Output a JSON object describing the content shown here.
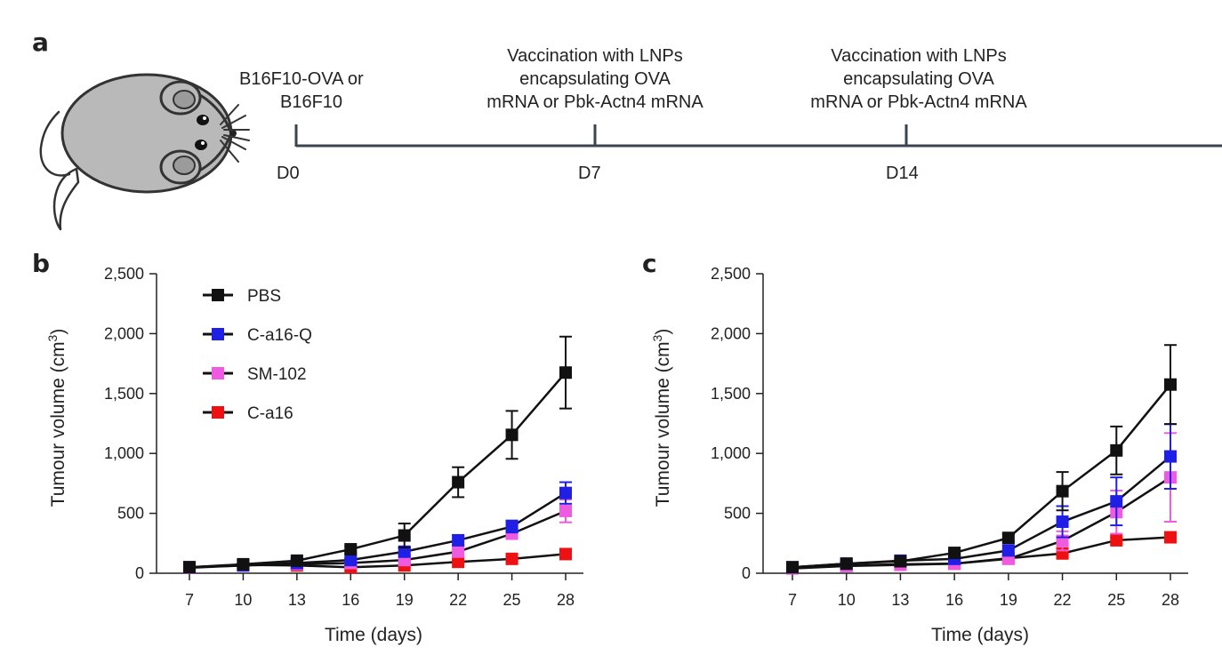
{
  "panels": {
    "a": "a",
    "b": "b",
    "c": "c"
  },
  "timeline": {
    "events": [
      {
        "day": "D0",
        "text": [
          "B16F10-OVA or",
          "B16F10"
        ]
      },
      {
        "day": "D7",
        "text": [
          "Vaccination with LNPs",
          "encapsulating OVA",
          "mRNA or Pbk-Actn4 mRNA"
        ]
      },
      {
        "day": "D14",
        "text": [
          "Vaccination with LNPs",
          "encapsulating OVA",
          "mRNA or Pbk-Actn4 mRNA"
        ]
      }
    ],
    "icon": "mouse-icon"
  },
  "colors": {
    "PBS": "#111111",
    "C-a16-Q": "#1f1fe6",
    "SM-102": "#ef5be0",
    "C-a16": "#ee1111",
    "line": "#111111",
    "axis": "#222222",
    "timeline": "#3a4450",
    "mouse_fill": "#b9b9b9"
  },
  "chart_data": [
    {
      "panel": "b",
      "type": "line",
      "x": [
        7,
        10,
        13,
        16,
        19,
        22,
        25,
        28
      ],
      "xlabel": "Time (days)",
      "ylabel": "Tumour volume (cm",
      "ylabel_sup": "3",
      "ylabel_close": ")",
      "xticks": [
        "7",
        "10",
        "13",
        "16",
        "19",
        "22",
        "25",
        "28"
      ],
      "yticks": [
        "0",
        "500",
        "1,000",
        "1,500",
        "2,000",
        "2,500"
      ],
      "ylim": [
        0,
        2500
      ],
      "legend": "top-left",
      "series": [
        {
          "name": "PBS",
          "values": [
            50,
            75,
            105,
            200,
            315,
            760,
            1155,
            1675
          ],
          "err": [
            10,
            10,
            15,
            25,
            100,
            125,
            200,
            300
          ]
        },
        {
          "name": "C-a16-Q",
          "values": [
            50,
            65,
            85,
            110,
            180,
            275,
            390,
            670
          ],
          "err": [
            5,
            10,
            10,
            15,
            30,
            40,
            50,
            90
          ]
        },
        {
          "name": "SM-102",
          "values": [
            45,
            65,
            75,
            85,
            110,
            180,
            330,
            520
          ],
          "err": [
            5,
            8,
            10,
            10,
            15,
            25,
            40,
            95
          ]
        },
        {
          "name": "C-a16",
          "values": [
            50,
            70,
            65,
            50,
            65,
            95,
            120,
            160
          ],
          "err": [
            5,
            5,
            5,
            5,
            8,
            10,
            10,
            15
          ]
        }
      ]
    },
    {
      "panel": "c",
      "type": "line",
      "x": [
        7,
        10,
        13,
        16,
        19,
        22,
        25,
        28
      ],
      "xlabel": "Time (days)",
      "ylabel": "Tumour volume (cm",
      "ylabel_sup": "3",
      "ylabel_close": ")",
      "xticks": [
        "7",
        "10",
        "13",
        "16",
        "19",
        "22",
        "25",
        "28"
      ],
      "yticks": [
        "0",
        "500",
        "1,000",
        "1,500",
        "2,000",
        "2,500"
      ],
      "ylim": [
        0,
        2500
      ],
      "series": [
        {
          "name": "PBS",
          "values": [
            50,
            80,
            100,
            170,
            295,
            685,
            1025,
            1575
          ],
          "err": [
            10,
            10,
            15,
            20,
            30,
            160,
            200,
            330
          ]
        },
        {
          "name": "C-a16-Q",
          "values": [
            50,
            80,
            105,
            120,
            190,
            430,
            600,
            975
          ],
          "err": [
            5,
            10,
            15,
            20,
            40,
            130,
            200,
            270
          ]
        },
        {
          "name": "SM-102",
          "values": [
            40,
            60,
            70,
            80,
            120,
            270,
            510,
            800
          ],
          "err": [
            5,
            8,
            10,
            15,
            30,
            80,
            180,
            370
          ]
        },
        {
          "name": "C-a16",
          "values": [
            45,
            65,
            75,
            80,
            125,
            165,
            275,
            300
          ],
          "err": [
            5,
            5,
            8,
            10,
            15,
            20,
            25,
            30
          ]
        }
      ]
    }
  ]
}
